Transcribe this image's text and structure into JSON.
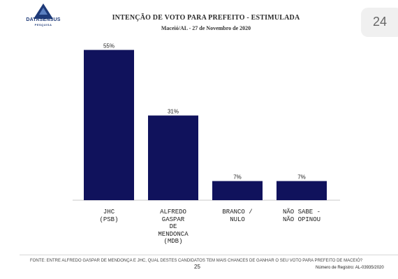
{
  "logo": {
    "name": "DATASENSUS",
    "sub": "PESQUISA"
  },
  "page_badge": "24",
  "chart_data": {
    "type": "bar",
    "title": "INTENÇÃO DE VOTO PARA PREFEITO - ESTIMULADA",
    "subtitle": "Maceió/AL - 27 de Novembro de 2020",
    "categories": [
      "JHC\n(PSB)",
      "ALFREDO\nGASPAR\nDE\nMENDONCA\n(MDB)",
      "BRANCO /\nNULO",
      "NÃO SABE  -\nNÃO OPINOU"
    ],
    "values": [
      55,
      31,
      7,
      7
    ],
    "data_labels": [
      "55%",
      "31%",
      "7%",
      "7%"
    ],
    "ylim": [
      0,
      60
    ],
    "grid": false,
    "colors": {
      "bar": "#10125c",
      "axis": "#c8c8c8"
    }
  },
  "footer": {
    "source": "FONTE: ENTRE ALFREDO GASPAR DE MENDONÇA E JHC, QUAL DESTES CANDIDATOS TEM MAIS CHANCES DE GANHAR O SEU VOTO PARA PREFEITO DE MACEIÓ?",
    "page_number": "25",
    "registro": "Número de Registro: AL-03935/2020"
  }
}
